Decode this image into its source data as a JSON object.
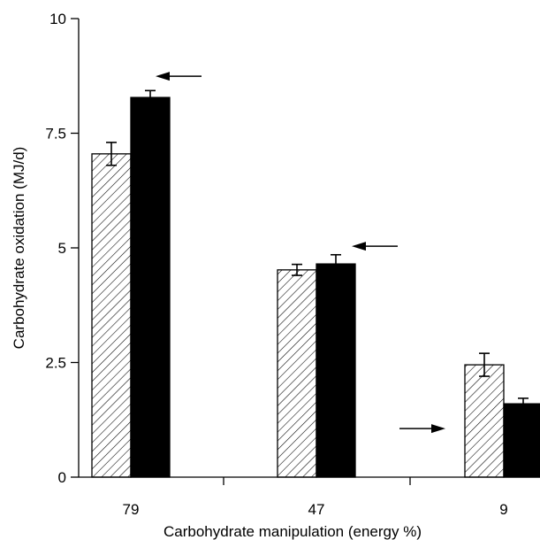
{
  "chart_data": {
    "type": "bar",
    "title": "",
    "xlabel": "Carbohydrate manipulation (energy %)",
    "ylabel": "Carbohydrate oxidation (MJ/d)",
    "categories": [
      "79",
      "47",
      "9"
    ],
    "ylim": [
      0,
      10
    ],
    "yticks": [
      0,
      2.5,
      5,
      7.5,
      10
    ],
    "ytick_labels": [
      "0",
      "2.5",
      "5",
      "7.5",
      "10"
    ],
    "grid": false,
    "legend": "none",
    "series": [
      {
        "values": [
          7.05,
          4.52,
          2.45
        ],
        "errors": [
          0.25,
          0.12,
          0.25
        ],
        "pattern": "diagonal-hatch",
        "color": "#000000"
      },
      {
        "values": [
          8.28,
          4.65,
          1.6
        ],
        "errors": [
          0.15,
          0.2,
          0.12
        ],
        "pattern": "solid",
        "color": "#000000"
      }
    ],
    "annotations": [
      {
        "type": "arrow",
        "direction": "left",
        "category": "79",
        "y": 8.28
      },
      {
        "type": "arrow",
        "direction": "left",
        "category": "47",
        "y": 4.65
      },
      {
        "type": "arrow",
        "direction": "right",
        "category": "9",
        "y": 1.6
      }
    ]
  }
}
